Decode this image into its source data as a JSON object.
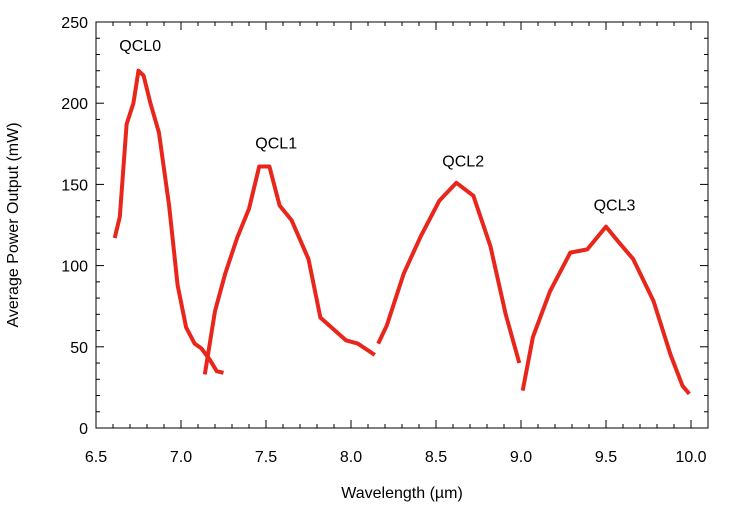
{
  "chart_data": {
    "type": "line",
    "title": "",
    "xlabel": "Wavelength (µm)",
    "ylabel": "Average Power Output (mW)",
    "xlim": [
      6.5,
      10.1
    ],
    "ylim": [
      0,
      250
    ],
    "xticks": [
      6.5,
      7.0,
      7.5,
      8.0,
      8.5,
      9.0,
      9.5,
      10.0
    ],
    "xtick_labels": [
      "6.5",
      "7.0",
      "7.5",
      "8.0",
      "8.5",
      "9.0",
      "9.5",
      "10.0"
    ],
    "yticks": [
      0,
      50,
      100,
      150,
      200,
      250
    ],
    "ytick_labels": [
      "0",
      "50",
      "100",
      "150",
      "200",
      "250"
    ],
    "grid": false,
    "line_color": "#e8261c",
    "series": [
      {
        "name": "QCL0",
        "x": [
          6.61,
          6.64,
          6.68,
          6.72,
          6.75,
          6.78,
          6.82,
          6.87,
          6.93,
          6.98,
          7.03,
          7.08,
          7.12,
          7.17,
          7.21,
          7.25
        ],
        "y": [
          117,
          130,
          187,
          200,
          220,
          217,
          200,
          182,
          137,
          88,
          62,
          52,
          49,
          42,
          35,
          34
        ]
      },
      {
        "name": "QCL1",
        "x": [
          7.14,
          7.2,
          7.26,
          7.33,
          7.4,
          7.46,
          7.52,
          7.58,
          7.65,
          7.75,
          7.82,
          7.97,
          8.04,
          8.14
        ],
        "y": [
          33,
          72,
          95,
          117,
          135,
          161,
          161,
          137,
          128,
          104,
          68,
          54,
          52,
          45
        ]
      },
      {
        "name": "QCL2",
        "x": [
          8.16,
          8.21,
          8.31,
          8.41,
          8.52,
          8.62,
          8.72,
          8.82,
          8.91,
          8.99
        ],
        "y": [
          52,
          63,
          95,
          118,
          140,
          151,
          143,
          112,
          70,
          40
        ]
      },
      {
        "name": "QCL3",
        "x": [
          9.01,
          9.07,
          9.17,
          9.29,
          9.39,
          9.5,
          9.57,
          9.66,
          9.78,
          9.88,
          9.95,
          9.99
        ],
        "y": [
          23,
          56,
          84,
          108,
          110,
          124,
          115,
          104,
          78,
          45,
          26,
          21
        ]
      }
    ],
    "annotations": [
      {
        "text": "QCL0",
        "x": 6.76,
        "y": 232
      },
      {
        "text": "QCL1",
        "x": 7.56,
        "y": 172
      },
      {
        "text": "QCL2",
        "x": 8.66,
        "y": 161
      },
      {
        "text": "QCL3",
        "x": 9.55,
        "y": 134
      }
    ]
  }
}
